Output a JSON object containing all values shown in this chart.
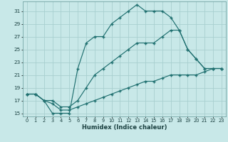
{
  "background_color": "#c8e8e8",
  "grid_color": "#a8d0d0",
  "line_color": "#207070",
  "xlabel": "Humidex (Indice chaleur)",
  "xlim_min": -0.5,
  "xlim_max": 23.5,
  "ylim_min": 14.5,
  "ylim_max": 32.5,
  "yticks": [
    15,
    17,
    19,
    21,
    23,
    25,
    27,
    29,
    31
  ],
  "xticks": [
    0,
    1,
    2,
    3,
    4,
    5,
    6,
    7,
    8,
    9,
    10,
    11,
    12,
    13,
    14,
    15,
    16,
    17,
    18,
    19,
    20,
    21,
    22,
    23
  ],
  "line1_x": [
    0,
    1,
    2,
    3,
    4,
    5,
    6,
    7,
    8,
    9,
    10,
    11,
    12,
    13,
    14,
    15,
    16,
    17,
    18,
    19,
    20,
    21,
    22,
    23
  ],
  "line1_y": [
    18,
    18,
    17,
    15,
    15,
    15,
    22,
    26,
    27,
    27,
    29,
    30,
    31,
    32,
    31,
    31,
    31,
    30,
    28,
    25,
    23.5,
    22,
    22,
    22
  ],
  "line2_x": [
    0,
    1,
    2,
    3,
    4,
    5,
    6,
    7,
    8,
    9,
    10,
    11,
    12,
    13,
    14,
    15,
    16,
    17,
    18,
    19,
    20,
    21,
    22,
    23
  ],
  "line2_y": [
    18,
    18,
    17,
    17,
    16,
    16,
    17,
    19,
    21,
    22,
    23,
    24,
    25,
    26,
    26,
    26,
    27,
    28,
    28,
    25,
    23.5,
    22,
    22,
    22
  ],
  "line3_x": [
    0,
    1,
    2,
    3,
    4,
    5,
    6,
    7,
    8,
    9,
    10,
    11,
    12,
    13,
    14,
    15,
    16,
    17,
    18,
    19,
    20,
    21,
    22,
    23
  ],
  "line3_y": [
    18,
    18,
    17,
    16.5,
    15.5,
    15.5,
    16,
    16.5,
    17,
    17.5,
    18,
    18.5,
    19,
    19.5,
    20,
    20,
    20.5,
    21,
    21,
    21,
    21,
    21.5,
    22,
    22
  ]
}
